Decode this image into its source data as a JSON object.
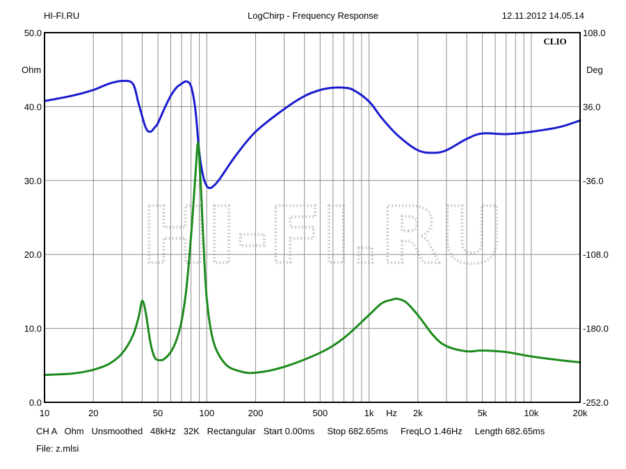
{
  "header": {
    "left": "HI-FI.RU",
    "center": "LogChirp - Frequency Response",
    "right": "12.11.2012 14.05.14"
  },
  "footer": {
    "params": "CH A   Ohm   Unsmoothed   48kHz   32K   Rectangular   Start 0.00ms     Stop 682.65ms     FreqLO 1.46Hz     Length 682.65ms",
    "file": "File: z.mlsi"
  },
  "colors": {
    "impedance": "#1a1ad0",
    "phase": "#1a8a1a",
    "grid": "#8c8c8c",
    "frame": "#000000",
    "watermark": "#c8c8c8"
  },
  "chart_data": {
    "type": "line",
    "x_scale": "log",
    "xlim": [
      10,
      20000
    ],
    "x_unit": "Hz",
    "x_tick_labels": [
      {
        "value": 10,
        "label": "10"
      },
      {
        "value": 20,
        "label": "20"
      },
      {
        "value": 50,
        "label": "50"
      },
      {
        "value": 100,
        "label": "100"
      },
      {
        "value": 200,
        "label": "200"
      },
      {
        "value": 500,
        "label": "500"
      },
      {
        "value": 1000,
        "label": "1k"
      },
      {
        "value": 2000,
        "label": "2k"
      },
      {
        "value": 5000,
        "label": "5k"
      },
      {
        "value": 10000,
        "label": "10k"
      },
      {
        "value": 20000,
        "label": "20k"
      }
    ],
    "y_left": {
      "label": "Ohm",
      "ylim": [
        0,
        50
      ],
      "ticks": [
        "50.0",
        "40.0",
        "30.0",
        "20.0",
        "10.0",
        "0.0"
      ]
    },
    "y_right": {
      "label": "Deg",
      "ylim": [
        -252,
        108
      ],
      "ticks": [
        "108.0",
        "36.0",
        "-36.0",
        "-108.0",
        "-180.0",
        "-252.0"
      ]
    },
    "brand_label": "CLIO",
    "watermark": "HI-FI.RU",
    "grid": true,
    "series": [
      {
        "key": "impedance",
        "axis": "right",
        "x": [
          10,
          15,
          20,
          25,
          30,
          35,
          38,
          42,
          45,
          48,
          50,
          55,
          60,
          65,
          70,
          75,
          80,
          85,
          90,
          95,
          100,
          105,
          110,
          120,
          150,
          200,
          300,
          400,
          500,
          600,
          700,
          800,
          1000,
          1200,
          1500,
          2000,
          2500,
          3000,
          4000,
          5000,
          7000,
          10000,
          15000,
          20000
        ],
        "y": [
          41.4,
          46.8,
          52.2,
          58.3,
          61.0,
          58.3,
          39.2,
          15.7,
          11.5,
          16.2,
          19.8,
          34.6,
          46.6,
          54.4,
          58.3,
          60.5,
          55.6,
          33.6,
          -9.0,
          -31.8,
          -41.4,
          -43.3,
          -41.4,
          -34.6,
          -12.3,
          11.5,
          33.6,
          46.2,
          52.2,
          54.4,
          54.4,
          52.2,
          41.0,
          24.8,
          8.1,
          -6.5,
          -9.0,
          -6.5,
          4.5,
          9.9,
          9.2,
          11.5,
          16.2,
          22.5
        ]
      },
      {
        "key": "phase",
        "axis": "left",
        "x": [
          10,
          15,
          20,
          25,
          30,
          35,
          38,
          40,
          42,
          45,
          48,
          52,
          55,
          60,
          65,
          70,
          75,
          80,
          85,
          88,
          90,
          93,
          95,
          100,
          110,
          130,
          160,
          200,
          300,
          500,
          700,
          1000,
          1200,
          1400,
          1500,
          1700,
          2000,
          2500,
          3000,
          4000,
          5000,
          7000,
          10000,
          15000,
          20000
        ],
        "y": [
          3.7,
          3.9,
          4.4,
          5.2,
          6.6,
          9.0,
          11.5,
          13.7,
          12.2,
          8.0,
          6.0,
          5.7,
          5.9,
          6.8,
          8.4,
          11.0,
          15.5,
          22.5,
          30.5,
          35.0,
          33.0,
          27.0,
          22.5,
          14.0,
          8.2,
          5.2,
          4.2,
          4.0,
          4.8,
          6.7,
          8.7,
          11.8,
          13.4,
          13.9,
          14.0,
          13.5,
          11.8,
          9.0,
          7.6,
          6.9,
          7.0,
          6.8,
          6.2,
          5.7,
          5.4
        ]
      }
    ]
  }
}
